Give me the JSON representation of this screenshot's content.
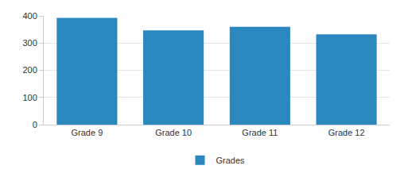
{
  "chart_data": {
    "type": "bar",
    "categories": [
      "Grade 9",
      "Grade 10",
      "Grade 11",
      "Grade 12"
    ],
    "series": [
      {
        "name": "Grades",
        "color": "#2a88bf",
        "values": [
          393,
          347,
          360,
          332
        ]
      }
    ],
    "ylim": [
      0,
      400
    ],
    "yticks": [
      0,
      100,
      200,
      300,
      400
    ],
    "grid": true,
    "legend": "bottom"
  }
}
